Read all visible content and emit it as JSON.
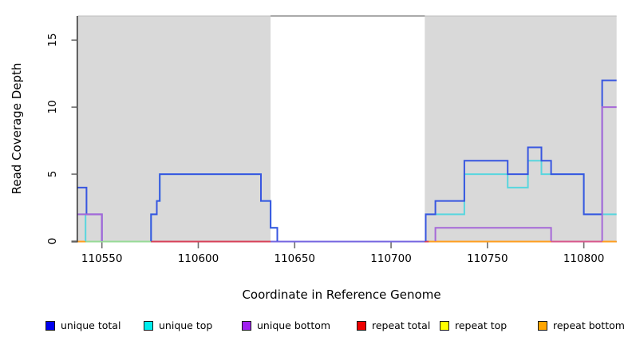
{
  "chart_data": {
    "type": "line",
    "subtype": "step-coverage",
    "title": "",
    "xlabel": "Coordinate in Reference Genome",
    "ylabel": "Read Coverage Depth",
    "xlim": [
      110537.5,
      110817
    ],
    "ylim": [
      0,
      16.8
    ],
    "x_ticks": [
      110550,
      110600,
      110650,
      110700,
      110750,
      110800
    ],
    "y_ticks": [
      0,
      5,
      10,
      15
    ],
    "grid": false,
    "legend_position": "bottom",
    "shaded_regions": {
      "color": "#D9D9D9",
      "ranges": [
        [
          110537.5,
          110637.5
        ],
        [
          110717.5,
          110817
        ]
      ]
    },
    "gap_top_line": {
      "color": "#8E8E8E",
      "value": 16.8,
      "from": 110637.5,
      "to": 110717.5
    },
    "series": [
      {
        "name": "unique top",
        "color": "#58D6DE",
        "paths": [
          [
            [
              110537.5,
              2
            ],
            [
              110541.5,
              2
            ],
            [
              110541.5,
              0
            ]
          ],
          [
            [
              110575.5,
              0
            ],
            [
              110575.5,
              2
            ],
            [
              110578.5,
              2
            ],
            [
              110578.5,
              3
            ],
            [
              110580,
              3
            ],
            [
              110580,
              5
            ],
            [
              110632.5,
              5
            ],
            [
              110632.5,
              3
            ],
            [
              110637.5,
              3
            ],
            [
              110637.5,
              1
            ],
            [
              110641,
              1
            ],
            [
              110641,
              0
            ]
          ],
          [
            [
              110718,
              0
            ],
            [
              110718,
              2
            ],
            [
              110738,
              2
            ],
            [
              110738,
              5
            ],
            [
              110760.5,
              5
            ],
            [
              110760.5,
              4
            ],
            [
              110771,
              4
            ],
            [
              110771,
              6
            ],
            [
              110778,
              6
            ],
            [
              110778,
              5
            ],
            [
              110800,
              5
            ],
            [
              110800,
              2
            ],
            [
              110817,
              2
            ]
          ]
        ]
      },
      {
        "name": "unique total",
        "color": "#3856E0",
        "paths": [
          [
            [
              110537.5,
              4
            ],
            [
              110542,
              4
            ],
            [
              110542,
              2
            ],
            [
              110550,
              2
            ],
            [
              110550,
              0
            ]
          ],
          [
            [
              110575.5,
              0
            ],
            [
              110575.5,
              2
            ],
            [
              110578.5,
              2
            ],
            [
              110578.5,
              3
            ],
            [
              110580,
              3
            ],
            [
              110580,
              5
            ],
            [
              110632.5,
              5
            ],
            [
              110632.5,
              3
            ],
            [
              110637.5,
              3
            ],
            [
              110637.5,
              1
            ],
            [
              110641,
              1
            ],
            [
              110641,
              0
            ]
          ],
          [
            [
              110718,
              0
            ],
            [
              110718,
              2
            ],
            [
              110723,
              2
            ],
            [
              110723,
              3
            ],
            [
              110738,
              3
            ],
            [
              110738,
              6
            ],
            [
              110760.5,
              6
            ],
            [
              110760.5,
              5
            ],
            [
              110771,
              5
            ],
            [
              110771,
              7
            ],
            [
              110778,
              7
            ],
            [
              110778,
              6
            ],
            [
              110783,
              6
            ],
            [
              110783,
              5
            ],
            [
              110800,
              5
            ],
            [
              110800,
              2
            ],
            [
              110809.5,
              2
            ],
            [
              110809.5,
              12
            ],
            [
              110817,
              12
            ]
          ]
        ]
      },
      {
        "name": "unique bottom",
        "color": "#A668D8",
        "paths": [
          [
            [
              110537.5,
              2
            ],
            [
              110550,
              2
            ],
            [
              110550,
              0
            ]
          ],
          [
            [
              110723,
              0
            ],
            [
              110723,
              1
            ],
            [
              110783,
              1
            ],
            [
              110783,
              0
            ]
          ],
          [
            [
              110809.5,
              0
            ],
            [
              110809.5,
              10
            ],
            [
              110817,
              10
            ]
          ]
        ]
      },
      {
        "name": "repeat total",
        "color": "#D84058",
        "constant_value": 0
      },
      {
        "name": "repeat top",
        "color": "#EEEE00",
        "constant_value": 0
      },
      {
        "name": "repeat bottom",
        "color": "#FF9E1E",
        "constant_value": 0
      }
    ],
    "baseline_segments": [
      {
        "from": 110537.5,
        "to": 110541.5,
        "color": "#FF9E1E"
      },
      {
        "from": 110541.5,
        "to": 110575.5,
        "color": "#97DB97"
      },
      {
        "from": 110575.5,
        "to": 110637.5,
        "color": "#D84058"
      },
      {
        "from": 110637.5,
        "to": 110717.5,
        "color": "#7464E0"
      },
      {
        "from": 110717.5,
        "to": 110719.5,
        "color": "#D84058"
      },
      {
        "from": 110719.5,
        "to": 110783,
        "color": "#FF9E1E"
      },
      {
        "from": 110783,
        "to": 110809.5,
        "color": "#D8578C"
      },
      {
        "from": 110809.5,
        "to": 110817,
        "color": "#FF9E1E"
      }
    ],
    "legend": [
      {
        "label": "unique total",
        "color": "#0000EE"
      },
      {
        "label": "unique top",
        "color": "#00EEEE"
      },
      {
        "label": "unique bottom",
        "color": "#A020F0"
      },
      {
        "label": "repeat total",
        "color": "#EE0000"
      },
      {
        "label": "repeat top",
        "color": "#FFFF00"
      },
      {
        "label": "repeat bottom",
        "color": "#FFA500"
      }
    ]
  }
}
